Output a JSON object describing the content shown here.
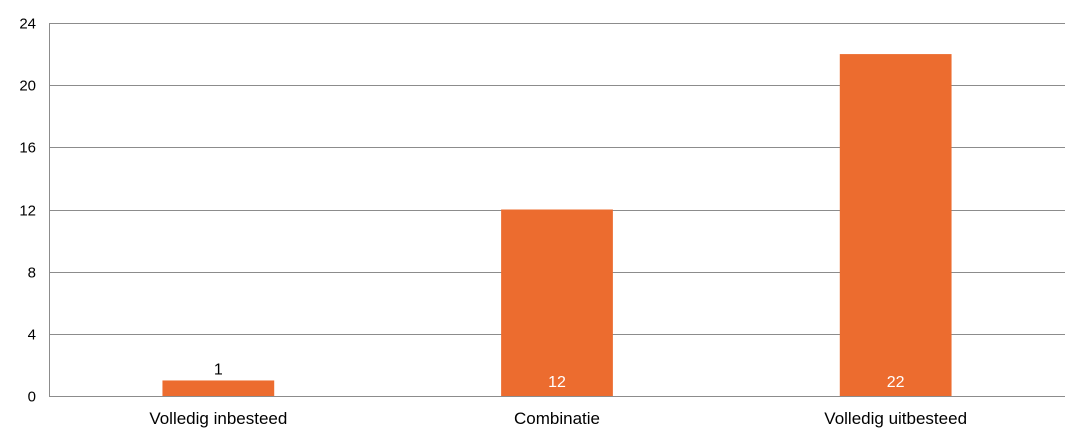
{
  "chart_data": {
    "type": "bar",
    "categories": [
      "Volledig inbesteed",
      "Combinatie",
      "Volledig uitbesteed"
    ],
    "values": [
      1,
      12,
      22
    ],
    "data_labels": [
      "1",
      "12",
      "22"
    ],
    "yticks": [
      "0",
      "4",
      "8",
      "12",
      "16",
      "20",
      "24"
    ],
    "ylim": [
      0,
      24
    ],
    "grid": true,
    "legend": "none",
    "bar_color": "#ec6c2f",
    "inside_label_color": "#ffffff",
    "outside_label_color": "#000000"
  }
}
